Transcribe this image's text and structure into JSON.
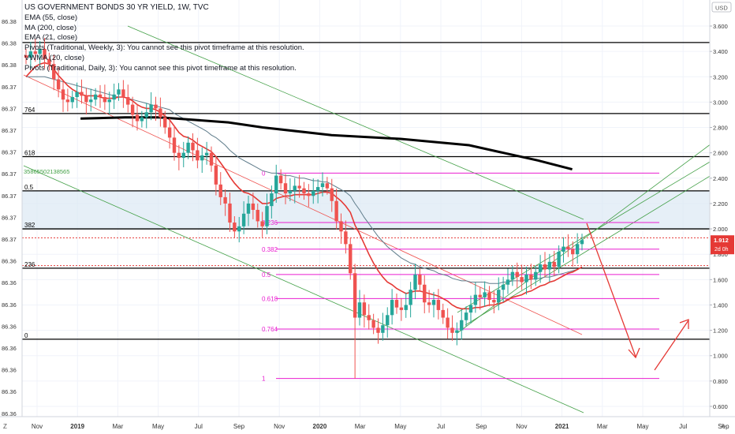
{
  "header": {
    "title": "US GOVERNMENT BONDS 30 YR YIELD, 1W, TVC",
    "indicators": [
      "EMA (55, close)",
      "MA (200, close)",
      "EMA (21, close)",
      "Pivots (Traditional, Weekly, 3): You cannot see this pivot timeframe at this resolution.",
      "VWMA (20, close)",
      "Pivots (Traditional, Daily, 3): You cannot see this pivot timeframe at this resolution."
    ]
  },
  "currency": "USD",
  "price_tag": {
    "value": "1.912",
    "countdown": "2d 0h",
    "color": "#e53935"
  },
  "left_axis_labels": [
    "86.38",
    "86.38",
    "86.38",
    "86.37",
    "86.37",
    "86.37",
    "86.37",
    "86.37",
    "86.37",
    "86.37",
    "86.37",
    "86.36",
    "86.36",
    "86.36",
    "86.36",
    "86.36",
    "86.36",
    "86.36",
    "86.36"
  ],
  "left_axis_id": "35865502138565",
  "left_fib_labels": [
    "764",
    "618",
    "0.5",
    "382",
    "236",
    "0"
  ],
  "corner_labels": {
    "left": "Z",
    "right": "A"
  },
  "colors": {
    "up": "#26a69a",
    "down": "#ef5350",
    "ema21": "#e53935",
    "ema55": "#607d8b",
    "ma200": "#000000",
    "fib": "#e91ed0",
    "channel": "#43a047",
    "arrow": "#e53935"
  },
  "chart_data": {
    "type": "candlestick",
    "xlabels": [
      "Nov",
      "2019",
      "Mar",
      "May",
      "Jul",
      "Sep",
      "Nov",
      "2020",
      "Mar",
      "May",
      "Jul",
      "Sep",
      "Nov",
      "2021",
      "Mar",
      "May",
      "Jul",
      "Sep"
    ],
    "ylim": [
      0.5,
      3.7
    ],
    "yticks": [
      3.6,
      3.4,
      3.2,
      3.0,
      2.8,
      2.6,
      2.4,
      2.2,
      2.0,
      1.8,
      1.6,
      1.4,
      1.2,
      1.0,
      0.8,
      0.6
    ],
    "ytick_labels": [
      "3.600",
      "3.400",
      "3.200",
      "3.000",
      "2.800",
      "2.600",
      "2.400",
      "2.200",
      "2.000",
      "1.800",
      "1.600",
      "1.400",
      "1.200",
      "1.000",
      "0.800",
      "0.600"
    ],
    "series_close": [
      3.35,
      3.4,
      3.38,
      3.42,
      3.34,
      3.3,
      3.18,
      3.1,
      3.02,
      3.0,
      3.04,
      3.08,
      3.05,
      3.0,
      3.02,
      3.06,
      3.04,
      3.0,
      3.02,
      3.06,
      3.1,
      3.04,
      2.98,
      2.9,
      2.85,
      2.88,
      2.92,
      2.98,
      2.95,
      2.88,
      2.8,
      2.72,
      2.6,
      2.56,
      2.6,
      2.68,
      2.62,
      2.54,
      2.58,
      2.6,
      2.5,
      2.35,
      2.25,
      2.2,
      2.05,
      1.98,
      2.02,
      2.12,
      2.2,
      2.15,
      2.06,
      2.02,
      2.18,
      2.28,
      2.42,
      2.36,
      2.28,
      2.3,
      2.34,
      2.32,
      2.28,
      2.26,
      2.3,
      2.33,
      2.36,
      2.32,
      2.22,
      2.06,
      1.98,
      1.88,
      1.65,
      1.3,
      1.42,
      1.32,
      1.28,
      1.22,
      1.18,
      1.24,
      1.32,
      1.44,
      1.38,
      1.36,
      1.4,
      1.52,
      1.64,
      1.56,
      1.42,
      1.4,
      1.44,
      1.36,
      1.3,
      1.22,
      1.18,
      1.2,
      1.28,
      1.34,
      1.4,
      1.48,
      1.46,
      1.5,
      1.44,
      1.42,
      1.52,
      1.56,
      1.6,
      1.66,
      1.62,
      1.58,
      1.64,
      1.6,
      1.66,
      1.72,
      1.68,
      1.74,
      1.7,
      1.82,
      1.86,
      1.84,
      1.8,
      1.88,
      1.912
    ],
    "ema21": [
      3.2,
      3.24,
      3.28,
      3.3,
      3.31,
      3.3,
      3.26,
      3.21,
      3.17,
      3.13,
      3.1,
      3.08,
      3.06,
      3.05,
      3.05,
      3.05,
      3.04,
      3.03,
      3.03,
      3.03,
      3.04,
      3.04,
      3.03,
      3.01,
      2.98,
      2.96,
      2.95,
      2.95,
      2.94,
      2.92,
      2.89,
      2.86,
      2.81,
      2.76,
      2.73,
      2.72,
      2.7,
      2.67,
      2.65,
      2.63,
      2.61,
      2.57,
      2.52,
      2.47,
      2.41,
      2.36,
      2.32,
      2.29,
      2.28,
      2.26,
      2.23,
      2.2,
      2.2,
      2.21,
      2.24,
      2.25,
      2.26,
      2.26,
      2.27,
      2.27,
      2.27,
      2.27,
      2.27,
      2.28,
      2.29,
      2.29,
      2.28,
      2.25,
      2.22,
      2.18,
      2.13,
      2.03,
      1.96,
      1.88,
      1.8,
      1.73,
      1.67,
      1.62,
      1.58,
      1.56,
      1.53,
      1.51,
      1.49,
      1.5,
      1.51,
      1.51,
      1.5,
      1.49,
      1.48,
      1.47,
      1.45,
      1.43,
      1.4,
      1.38,
      1.37,
      1.37,
      1.37,
      1.38,
      1.38,
      1.39,
      1.4,
      1.4,
      1.41,
      1.42,
      1.44,
      1.46,
      1.47,
      1.48,
      1.5,
      1.51,
      1.53,
      1.55,
      1.56,
      1.58,
      1.59,
      1.61,
      1.63,
      1.65,
      1.66,
      1.68,
      1.7
    ],
    "ema55": [
      3.2,
      3.2,
      3.2,
      3.2,
      3.2,
      3.19,
      3.18,
      3.17,
      3.16,
      3.15,
      3.14,
      3.13,
      3.12,
      3.11,
      3.1,
      3.09,
      3.08,
      3.07,
      3.06,
      3.05,
      3.04,
      3.04,
      3.03,
      3.02,
      3.01,
      3.0,
      2.99,
      2.98,
      2.97,
      2.96,
      2.95,
      2.94,
      2.91,
      2.89,
      2.87,
      2.85,
      2.83,
      2.81,
      2.79,
      2.77,
      2.74,
      2.72,
      2.69,
      2.66,
      2.62,
      2.59,
      2.56,
      2.54,
      2.52,
      2.5,
      2.48,
      2.46,
      2.45,
      2.44,
      2.44,
      2.43,
      2.42,
      2.42,
      2.41,
      2.4,
      2.4,
      2.39,
      2.38,
      2.38,
      2.37,
      2.37,
      2.35,
      2.33,
      2.31,
      2.29,
      2.26,
      2.2,
      2.15,
      2.09,
      2.04,
      1.99,
      1.94,
      1.9,
      1.86,
      1.83,
      1.8,
      1.77,
      1.75,
      1.73,
      1.72,
      1.7,
      1.69,
      1.68,
      1.67,
      1.65,
      1.64,
      1.63,
      1.61,
      1.6,
      1.59,
      1.59,
      1.58,
      1.58,
      1.58,
      1.58,
      1.57,
      1.57,
      1.57,
      1.58,
      1.58,
      1.59,
      1.59,
      1.59,
      1.6,
      1.6,
      1.61,
      1.61,
      1.62,
      1.62,
      1.63,
      1.64,
      1.65,
      1.66,
      1.67,
      1.68,
      1.7
    ],
    "ma200": [
      [
        0.085,
        2.87
      ],
      [
        0.15,
        2.88
      ],
      [
        0.2,
        2.88
      ],
      [
        0.25,
        2.86
      ],
      [
        0.3,
        2.84
      ],
      [
        0.35,
        2.8
      ],
      [
        0.45,
        2.74
      ],
      [
        0.55,
        2.71
      ],
      [
        0.65,
        2.66
      ],
      [
        0.7,
        2.6
      ],
      [
        0.75,
        2.54
      ],
      [
        0.8,
        2.47
      ]
    ],
    "fib_levels": [
      {
        "label": "0",
        "value": 2.44
      },
      {
        "label": "0.236",
        "value": 2.05
      },
      {
        "label": "0.382",
        "value": 1.84
      },
      {
        "label": "0.5",
        "value": 1.64
      },
      {
        "label": "0.618",
        "value": 1.45
      },
      {
        "label": "0.764",
        "value": 1.21
      },
      {
        "label": "1",
        "value": 0.82
      }
    ],
    "horizontal_levels": [
      3.47,
      2.91,
      2.57,
      2.3,
      2.0,
      1.69,
      1.13
    ],
    "current_price": 1.912
  }
}
